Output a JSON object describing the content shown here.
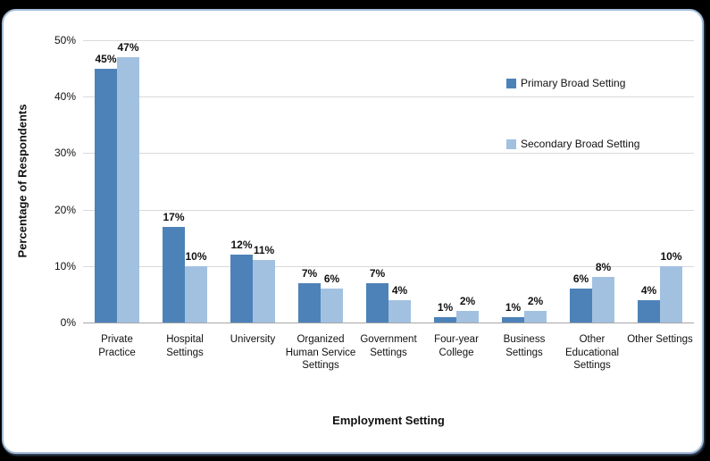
{
  "chart_data": {
    "type": "bar",
    "title": "",
    "xlabel": "Employment Setting",
    "ylabel": "Percentage of Respondents",
    "categories": [
      "Private Practice",
      "Hospital Settings",
      "University",
      "Organized Human Service Settings",
      "Government Settings",
      "Four-year College",
      "Business Settings",
      "Other Educational Settings",
      "Other Settings"
    ],
    "series": [
      {
        "name": "Primary Broad Setting",
        "color": "#4d82b8",
        "values": [
          45,
          17,
          12,
          7,
          7,
          1,
          1,
          6,
          4
        ]
      },
      {
        "name": "Secondary Broad Setting",
        "color": "#a2c1e1",
        "values": [
          47,
          10,
          11,
          6,
          4,
          2,
          2,
          8,
          10
        ]
      }
    ],
    "ylim": [
      0,
      50
    ],
    "yticks": [
      0,
      10,
      20,
      30,
      40,
      50
    ],
    "ytick_format": "{v}%",
    "value_label_format": "{v}%",
    "grid": true,
    "legend_position": "right-inside"
  },
  "colors": {
    "background": "#000000",
    "panel_border": "#a4bdd8",
    "gridline": "#d9d9d9",
    "axis_line": "#a6a6a6",
    "text": "#111111"
  }
}
